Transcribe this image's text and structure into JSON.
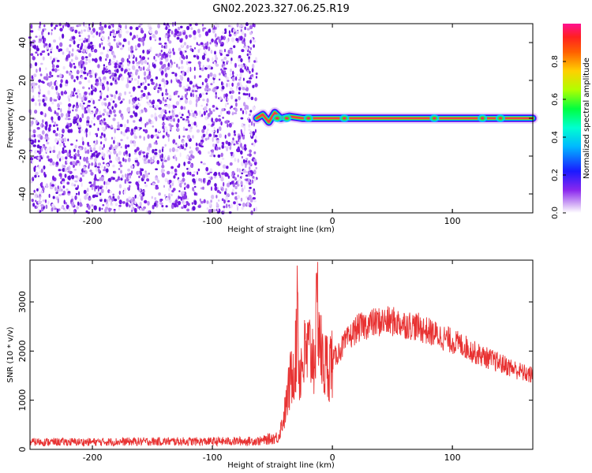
{
  "title": "GN02.2023.327.06.25.R19",
  "colors": {
    "snr_line": "#e83232",
    "noise": "#7a1fe6",
    "ridge": "#e8325a"
  },
  "chart_data": [
    {
      "type": "heatmap",
      "xlabel": "Height of straight line (km)",
      "ylabel": "Frequency (Hz)",
      "xlim": [
        -252,
        167
      ],
      "ylim": [
        -50,
        50
      ],
      "x_ticks": [
        -200,
        -100,
        0,
        100
      ],
      "y_ticks": [
        -40,
        -20,
        0,
        20,
        40
      ],
      "noise_region": {
        "x_from": -252,
        "x_to": -63,
        "amplitude": 0.2
      },
      "signal_ridge": {
        "frequency": 0,
        "x_from": -63,
        "x_to": 167,
        "points": [
          {
            "x": -63,
            "y": 0,
            "amp": 0.45
          },
          {
            "x": -58,
            "y": 2,
            "amp": 0.5
          },
          {
            "x": -53,
            "y": -2,
            "amp": 0.6
          },
          {
            "x": -48,
            "y": 3,
            "amp": 0.7
          },
          {
            "x": -43,
            "y": 0,
            "amp": 0.8
          },
          {
            "x": -36,
            "y": 1,
            "amp": 0.85
          },
          {
            "x": -25,
            "y": 0,
            "amp": 0.95
          },
          {
            "x": 0,
            "y": 0,
            "amp": 1.0
          },
          {
            "x": 80,
            "y": 0,
            "amp": 1.0
          },
          {
            "x": 167,
            "y": 0,
            "amp": 1.0
          }
        ]
      },
      "colorbar": {
        "label": "Normalized spectral amplitude",
        "range": [
          0,
          1
        ],
        "ticks": [
          "0.0",
          "0.2",
          "0.4",
          "0.6",
          "0.8"
        ],
        "tick_values": [
          0,
          0.2,
          0.4,
          0.6,
          0.8
        ]
      }
    },
    {
      "type": "line",
      "xlabel": "Height of straight line (km)",
      "ylabel": "SNR (10 * v/v)",
      "xlim": [
        -252,
        167
      ],
      "ylim": [
        0,
        3850
      ],
      "x_ticks": [
        -200,
        -100,
        0,
        100
      ],
      "y_ticks": [
        0,
        1000,
        2000,
        3000
      ],
      "series": [
        {
          "x": [
            -252,
            -200,
            -150,
            -100,
            -60,
            -45,
            -40,
            -35,
            -30,
            -29,
            -28,
            -25,
            -20,
            -15,
            -12,
            -10,
            -8,
            -5,
            0,
            10,
            20,
            30,
            40,
            50,
            60,
            70,
            80,
            90,
            100,
            110,
            120,
            130,
            140,
            150,
            160,
            167
          ],
          "y": [
            150,
            150,
            160,
            160,
            170,
            250,
            700,
            1400,
            2000,
            3800,
            1500,
            1800,
            2000,
            1900,
            3000,
            2100,
            1700,
            1700,
            1800,
            2150,
            2450,
            2550,
            2600,
            2600,
            2550,
            2500,
            2400,
            2300,
            2200,
            2100,
            1950,
            1850,
            1750,
            1650,
            1550,
            1500
          ]
        }
      ]
    }
  ]
}
